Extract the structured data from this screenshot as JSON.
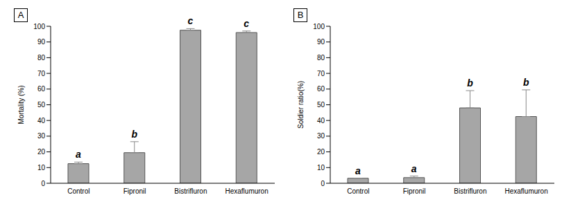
{
  "chart_data": [
    {
      "type": "bar",
      "title": "A",
      "y_label": "Mortality (%)",
      "categories": [
        "Control",
        "Fipronil",
        "Bistrifluron",
        "Hexaflumuron"
      ],
      "values": [
        12.5,
        19.5,
        97.5,
        96
      ],
      "errors": [
        1,
        7,
        1,
        1
      ],
      "annotations": [
        "a",
        "b",
        "c",
        "c"
      ],
      "color": "#a6a6a6",
      "ylim": [
        0,
        100
      ],
      "yticks": [
        0,
        10,
        20,
        30,
        40,
        50,
        60,
        70,
        80,
        90,
        100
      ],
      "grid": false
    },
    {
      "type": "bar",
      "title": "B",
      "y_label": "Soldier ratio(%)",
      "categories": [
        "Control",
        "Fipronil",
        "Bistrifluron",
        "Hexaflumuron"
      ],
      "values": [
        3.2,
        3.6,
        48,
        42.5
      ],
      "errors": [
        0,
        1,
        11,
        17
      ],
      "annotations": [
        "a",
        "a",
        "b",
        "b"
      ],
      "color": "#a6a6a6",
      "ylim": [
        0,
        100
      ],
      "yticks": [
        0,
        10,
        20,
        30,
        40,
        50,
        60,
        70,
        80,
        90,
        100
      ],
      "grid": false
    }
  ]
}
